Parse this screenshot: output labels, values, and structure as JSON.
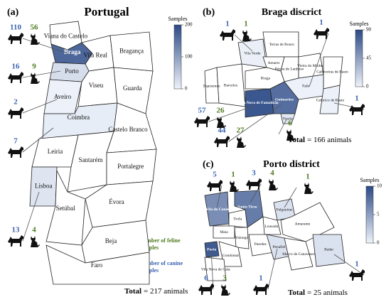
{
  "panels": [
    {
      "label": "(a)",
      "title": "Portugal",
      "colorbar": {
        "title": "Samples",
        "lim": [
          0,
          200
        ],
        "ticks": [
          0,
          100,
          200
        ]
      },
      "regions": [
        {
          "name": "Viana do Castelo"
        },
        {
          "name": "Braga",
          "dogs": 110,
          "cats": 56
        },
        {
          "name": "Vila Real"
        },
        {
          "name": "Bragança"
        },
        {
          "name": "Porto",
          "dogs": 16,
          "cats": 9
        },
        {
          "name": "Aveiro",
          "dogs": 2
        },
        {
          "name": "Viseu"
        },
        {
          "name": "Guarda"
        },
        {
          "name": "Coimbra",
          "dogs": 7
        },
        {
          "name": "Castelo Branco"
        },
        {
          "name": "Leiria"
        },
        {
          "name": "Santarém"
        },
        {
          "name": "Lisboa",
          "dogs": 13,
          "cats": 4
        },
        {
          "name": "Portalegre"
        },
        {
          "name": "Setúbal"
        },
        {
          "name": "Évora"
        },
        {
          "name": "Beja"
        },
        {
          "name": "Faro"
        }
      ],
      "total": {
        "label": "Total",
        "text": "= 217 animals"
      }
    },
    {
      "label": "(b)",
      "title": "Braga discrict",
      "colorbar": {
        "title": "Samples",
        "lim": [
          0,
          90
        ],
        "ticks": [
          0,
          45,
          90
        ]
      },
      "regions": [
        {
          "name": "Esposende"
        },
        {
          "name": "Barcelos"
        },
        {
          "name": "Vila Verde",
          "dogs": 1,
          "cats": 1
        },
        {
          "name": "Terras de Bouro"
        },
        {
          "name": "Amares"
        },
        {
          "name": "Póvoa de Lanhoso"
        },
        {
          "name": "Vieira do Minho"
        },
        {
          "name": "Braga"
        },
        {
          "name": "Cabeceiras de Basto"
        },
        {
          "name": "Fafe",
          "dogs": 1
        },
        {
          "name": "Celorico de Basto",
          "dogs": 1
        },
        {
          "name": "Guimarães",
          "dogs": 44,
          "cats": 27
        },
        {
          "name": "Vila Nova de Famalicão",
          "dogs": 57,
          "cats": 26
        },
        {
          "name": "Vizela",
          "cats": 6
        }
      ],
      "total": {
        "label": "Total",
        "text": "= 166 animals"
      }
    },
    {
      "label": "(c)",
      "title": "Porto district",
      "colorbar": {
        "title": "Samples",
        "lim": [
          0,
          10
        ],
        "ticks": [
          0,
          5,
          10
        ]
      },
      "regions": [
        {
          "name": "Vila do Conde",
          "dogs": 5,
          "cats": 1
        },
        {
          "name": "Trofa"
        },
        {
          "name": "Santo Tirso",
          "dogs": 3,
          "cats": 4
        },
        {
          "name": "Felgueiras",
          "cats": 1
        },
        {
          "name": "Lousada"
        },
        {
          "name": "Amarante"
        },
        {
          "name": "Maia"
        },
        {
          "name": "Valongo"
        },
        {
          "name": "Paredes"
        },
        {
          "name": "Penafiel",
          "dogs": 1
        },
        {
          "name": "Marco de Canaveses"
        },
        {
          "name": "Baião",
          "dogs": 1
        },
        {
          "name": "Porto",
          "dogs": 6,
          "cats": 3
        },
        {
          "name": "Gondomar"
        },
        {
          "name": "Vila Nova de Gaia"
        }
      ],
      "total": {
        "label": "Total",
        "text": "= 25 animals"
      }
    }
  ],
  "legend": {
    "feline": "Number of feline samples",
    "canine": "Number of canine samples"
  }
}
